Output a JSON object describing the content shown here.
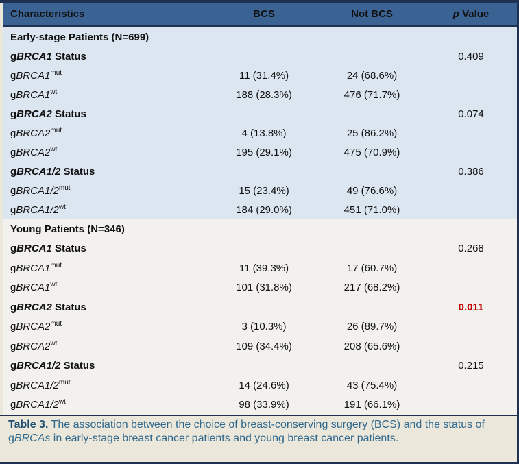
{
  "colors": {
    "header_bg": "#3A6292",
    "outer_border": "#1F3050",
    "early_section_bg": "#DCE6F1",
    "young_section_bg": "#F2F1EE",
    "page_beige": "#EBE7DA",
    "significant_p": "#C00000",
    "caption_text": "#31698E",
    "caption_label": "#1E4E70"
  },
  "header": {
    "characteristics": "Characteristics",
    "bcs": "BCS",
    "not_bcs": "Not BCS",
    "p_italic": "p",
    "p_rest": " Value"
  },
  "sections": [
    {
      "title": "Early-stage Patients (N=699)",
      "groups": [
        {
          "label": {
            "prefix": "g",
            "gene": "BRCA1",
            "suffix": " Status"
          },
          "p": "0.409",
          "rows": [
            {
              "prefix": "g",
              "gene": "BRCA1",
              "sup": "mut",
              "bcs": "11 (31.4%)",
              "not_bcs": "24 (68.6%)"
            },
            {
              "prefix": "g",
              "gene": "BRCA1",
              "sup": "wt",
              "bcs": "188 (28.3%)",
              "not_bcs": "476 (71.7%)"
            }
          ]
        },
        {
          "label": {
            "prefix": "g",
            "gene": "BRCA2",
            "suffix": " Status"
          },
          "p": "0.074",
          "rows": [
            {
              "prefix": "g",
              "gene": "BRCA2",
              "sup": "mut",
              "bcs": "4 (13.8%)",
              "not_bcs": "25 (86.2%)"
            },
            {
              "prefix": "g",
              "gene": "BRCA2",
              "sup": "wt",
              "bcs": "195 (29.1%)",
              "not_bcs": "475 (70.9%)"
            }
          ]
        },
        {
          "label": {
            "prefix": "g",
            "gene": "BRCA1/2",
            "suffix": " Status"
          },
          "p": "0.386",
          "rows": [
            {
              "prefix": "g",
              "gene": "BRCA1/2",
              "sup": "mut",
              "bcs": "15 (23.4%)",
              "not_bcs": "49 (76.6%)"
            },
            {
              "prefix": "g",
              "gene": "BRCA1/2",
              "sup": "wt",
              "bcs": "184 (29.0%)",
              "not_bcs": "451 (71.0%)"
            }
          ]
        }
      ]
    },
    {
      "title": "Young Patients (N=346)",
      "groups": [
        {
          "label": {
            "prefix": "g",
            "gene": "BRCA1",
            "suffix": " Status"
          },
          "p": "0.268",
          "rows": [
            {
              "prefix": "g",
              "gene": "BRCA1",
              "sup": "mut",
              "bcs": "11 (39.3%)",
              "not_bcs": "17 (60.7%)"
            },
            {
              "prefix": "g",
              "gene": "BRCA1",
              "sup": "wt",
              "bcs": "101 (31.8%)",
              "not_bcs": "217 (68.2%)"
            }
          ]
        },
        {
          "label": {
            "prefix": "g",
            "gene": "BRCA2",
            "suffix": " Status"
          },
          "p": "0.011",
          "p_color": "#C00000",
          "rows": [
            {
              "prefix": "g",
              "gene": "BRCA2",
              "sup": "mut",
              "bcs": "3 (10.3%)",
              "not_bcs": "26 (89.7%)"
            },
            {
              "prefix": "g",
              "gene": "BRCA2",
              "sup": "wt",
              "bcs": "109 (34.4%)",
              "not_bcs": "208 (65.6%)"
            }
          ]
        },
        {
          "label": {
            "prefix": "g",
            "gene": "BRCA1/2",
            "suffix": " Status"
          },
          "p": "0.215",
          "rows": [
            {
              "prefix": "g",
              "gene": "BRCA1/2",
              "sup": "mut",
              "bcs": "14 (24.6%)",
              "not_bcs": "43 (75.4%)"
            },
            {
              "prefix": "g",
              "gene": "BRCA1/2",
              "sup": "wt",
              "bcs": "98 (33.9%)",
              "not_bcs": "191 (66.1%)"
            }
          ]
        }
      ]
    }
  ],
  "caption": {
    "label": "Table 3.",
    "before_gene": " The association between the choice of breast-conserving surgery (BCS) and the status of g",
    "gene": "BRCAs",
    "after_gene": " in early-stage breast cancer patients and young breast cancer patients."
  }
}
